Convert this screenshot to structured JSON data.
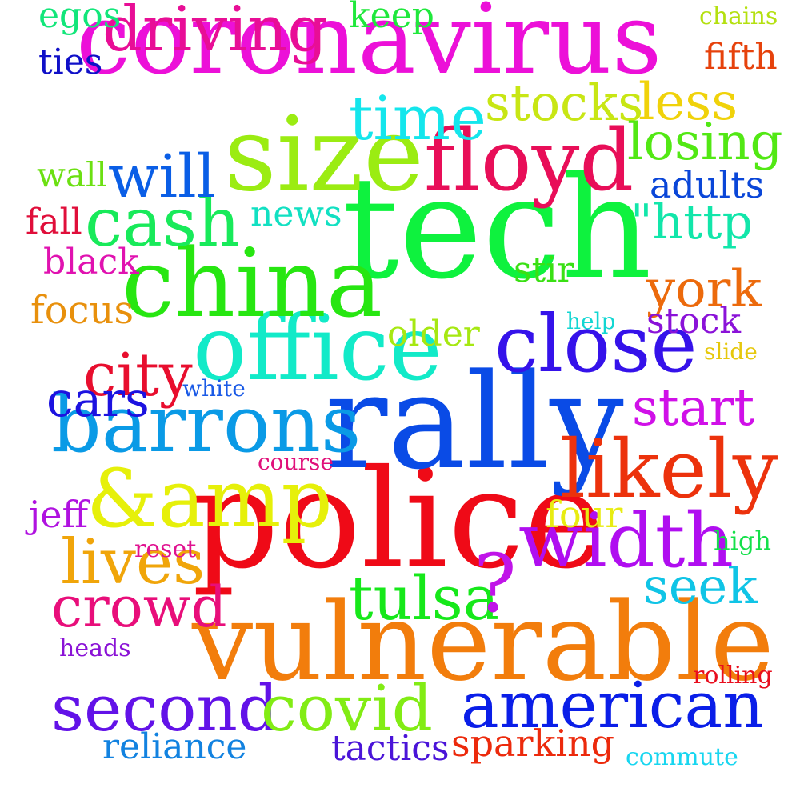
{
  "words": [
    {
      "text": "coronavirus",
      "color": "#ec10d8"
    },
    {
      "text": "tech",
      "color": "#0ef23e"
    },
    {
      "text": "police",
      "color": "#ef0a17"
    },
    {
      "text": "rally",
      "color": "#0a4be6"
    },
    {
      "text": "vulnerable",
      "color": "#f27d0c"
    },
    {
      "text": "size",
      "color": "#9bec12"
    },
    {
      "text": "office",
      "color": "#12eac8"
    },
    {
      "text": "china",
      "color": "#27e611"
    },
    {
      "text": "floyd",
      "color": "#e80e58"
    },
    {
      "text": "close",
      "color": "#3512ea"
    },
    {
      "text": "barrons",
      "color": "#0a9ae6"
    },
    {
      "text": "&amp",
      "color": "#e6f00a"
    },
    {
      "text": "likely",
      "color": "#ec320c"
    },
    {
      "text": "width",
      "color": "#b00ef0"
    },
    {
      "text": "american",
      "color": "#0a1ee8"
    },
    {
      "text": "second",
      "color": "#6212e8"
    },
    {
      "text": "covid",
      "color": "#82ec14"
    },
    {
      "text": "driving",
      "color": "#e80e96"
    },
    {
      "text": "cash",
      "color": "#18ea5a"
    },
    {
      "text": "time",
      "color": "#14e6ec"
    },
    {
      "text": "will",
      "color": "#0a5ee6"
    },
    {
      "text": "tulsa",
      "color": "#16e81a"
    },
    {
      "text": "?",
      "color": "#c014e8"
    },
    {
      "text": "lives",
      "color": "#f0a50a"
    },
    {
      "text": "stocks",
      "color": "#c8e614"
    },
    {
      "text": "losing",
      "color": "#52e814"
    },
    {
      "text": "city",
      "color": "#e80e2e"
    },
    {
      "text": "york",
      "color": "#ec6a0c"
    },
    {
      "text": "cars",
      "color": "#1c12e0"
    },
    {
      "text": "crowd",
      "color": "#e80e7a"
    },
    {
      "text": "seek",
      "color": "#10c4e6"
    },
    {
      "text": "start",
      "color": "#d010e8"
    },
    {
      "text": "less",
      "color": "#f0d20a"
    },
    {
      "text": "\"http",
      "color": "#12e6aa"
    },
    {
      "text": "stock",
      "color": "#8a12d8"
    },
    {
      "text": "adults",
      "color": "#0a46d8"
    },
    {
      "text": "egos",
      "color": "#12e67a"
    },
    {
      "text": "keep",
      "color": "#20e83c"
    },
    {
      "text": "ties",
      "color": "#1010c8"
    },
    {
      "text": "fifth",
      "color": "#e6420c"
    },
    {
      "text": "chains",
      "color": "#b4e010"
    },
    {
      "text": "news",
      "color": "#12e0c2"
    },
    {
      "text": "wall",
      "color": "#6ce012"
    },
    {
      "text": "fall",
      "color": "#e00e3a"
    },
    {
      "text": "black",
      "color": "#e012b0"
    },
    {
      "text": "focus",
      "color": "#e8900c"
    },
    {
      "text": "older",
      "color": "#a6e812"
    },
    {
      "text": "stir",
      "color": "#3ae014"
    },
    {
      "text": "help",
      "color": "#12d6d2"
    },
    {
      "text": "slide",
      "color": "#e6c80c"
    },
    {
      "text": "white",
      "color": "#1a5ae6"
    },
    {
      "text": "course",
      "color": "#e0107a"
    },
    {
      "text": "jeff",
      "color": "#b012e0"
    },
    {
      "text": "four",
      "color": "#e8ec12"
    },
    {
      "text": "reset",
      "color": "#e01290"
    },
    {
      "text": "high",
      "color": "#14e04a"
    },
    {
      "text": "heads",
      "color": "#8a12d6"
    },
    {
      "text": "rolling",
      "color": "#e80e1e"
    },
    {
      "text": "reliance",
      "color": "#1282e0"
    },
    {
      "text": "tactics",
      "color": "#4a14d8"
    },
    {
      "text": "sparking",
      "color": "#ec2a0c"
    },
    {
      "text": "commute",
      "color": "#18d6f0"
    }
  ]
}
